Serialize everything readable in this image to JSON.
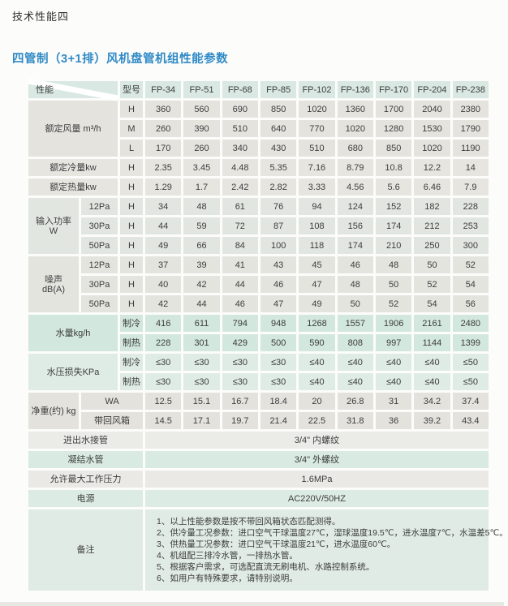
{
  "page": {
    "title": "技术性能四",
    "subtitle": "四管制（3+1排）风机盘管机组性能参数",
    "accent_color": "#2f8ac6",
    "green_row_color": "#d2e7dd",
    "gray_row_color": "#e5e3de"
  },
  "table": {
    "corner_left": "性能",
    "corner_right": "型号",
    "models": [
      "FP-34",
      "FP-51",
      "FP-68",
      "FP-85",
      "FP-102",
      "FP-136",
      "FP-170",
      "FP-204",
      "FP-238"
    ],
    "airflow": {
      "label": "额定风量 m³/h",
      "rows": [
        {
          "tap": "H",
          "v": [
            "360",
            "560",
            "690",
            "850",
            "1020",
            "1360",
            "1700",
            "2040",
            "2380"
          ]
        },
        {
          "tap": "M",
          "v": [
            "260",
            "390",
            "510",
            "640",
            "770",
            "1020",
            "1280",
            "1530",
            "1790"
          ]
        },
        {
          "tap": "L",
          "v": [
            "170",
            "260",
            "340",
            "430",
            "510",
            "680",
            "850",
            "1020",
            "1190"
          ]
        }
      ]
    },
    "cooling": {
      "label": "额定冷量kw",
      "tap": "H",
      "v": [
        "2.35",
        "3.45",
        "4.48",
        "5.35",
        "7.16",
        "8.79",
        "10.8",
        "12.2",
        "14"
      ]
    },
    "heating": {
      "label": "额定热量kw",
      "tap": "H",
      "v": [
        "1.29",
        "1.7",
        "2.42",
        "2.82",
        "3.33",
        "4.56",
        "5.6",
        "6.46",
        "7.9"
      ]
    },
    "power": {
      "label": "输入功率\nW",
      "rows": [
        {
          "pa": "12Pa",
          "tap": "H",
          "v": [
            "34",
            "48",
            "61",
            "76",
            "94",
            "124",
            "152",
            "182",
            "228"
          ]
        },
        {
          "pa": "30Pa",
          "tap": "H",
          "v": [
            "44",
            "59",
            "72",
            "87",
            "108",
            "156",
            "174",
            "212",
            "253"
          ]
        },
        {
          "pa": "50Pa",
          "tap": "H",
          "v": [
            "49",
            "66",
            "84",
            "100",
            "118",
            "174",
            "210",
            "250",
            "300"
          ]
        }
      ]
    },
    "noise": {
      "label": "噪声\ndB(A)",
      "rows": [
        {
          "pa": "12Pa",
          "tap": "H",
          "v": [
            "37",
            "39",
            "41",
            "43",
            "45",
            "46",
            "48",
            "50",
            "52"
          ]
        },
        {
          "pa": "30Pa",
          "tap": "H",
          "v": [
            "40",
            "42",
            "44",
            "46",
            "47",
            "48",
            "50",
            "52",
            "54"
          ]
        },
        {
          "pa": "50Pa",
          "tap": "H",
          "v": [
            "42",
            "44",
            "46",
            "47",
            "49",
            "50",
            "52",
            "54",
            "56"
          ]
        }
      ]
    },
    "waterflow": {
      "label": "水量kg/h",
      "rows": [
        {
          "mode": "制冷",
          "v": [
            "416",
            "611",
            "794",
            "948",
            "1268",
            "1557",
            "1906",
            "2161",
            "2480"
          ]
        },
        {
          "mode": "制热",
          "v": [
            "228",
            "301",
            "429",
            "500",
            "590",
            "808",
            "997",
            "1144",
            "1399"
          ]
        }
      ]
    },
    "pressure_loss": {
      "label": "水压损失KPa",
      "rows": [
        {
          "mode": "制冷",
          "v": [
            "≤30",
            "≤30",
            "≤30",
            "≤30",
            "≤40",
            "≤40",
            "≤40",
            "≤40",
            "≤50"
          ]
        },
        {
          "mode": "制热",
          "v": [
            "≤30",
            "≤30",
            "≤30",
            "≤30",
            "≤40",
            "≤40",
            "≤40",
            "≤40",
            "≤50"
          ]
        }
      ]
    },
    "weight": {
      "label": "净重(约) kg",
      "rows": [
        {
          "variant": "WA",
          "v": [
            "12.5",
            "15.1",
            "16.7",
            "18.4",
            "20",
            "26.8",
            "31",
            "34.2",
            "37.4"
          ]
        },
        {
          "variant": "带回风箱",
          "v": [
            "14.5",
            "17.1",
            "19.7",
            "21.4",
            "22.5",
            "31.8",
            "36",
            "39.2",
            "43.4"
          ]
        }
      ]
    },
    "full_rows": [
      {
        "label": "进出水接管",
        "value": "3/4\" 内螺纹"
      },
      {
        "label": "凝结水管",
        "value": "3/4\" 外螺纹"
      },
      {
        "label": "允许最大工作压力",
        "value": "1.6MPa"
      },
      {
        "label": "电源",
        "value": "AC220V/50HZ"
      }
    ],
    "remarks": {
      "label": "备注",
      "notes": [
        "1、以上性能参数是按不带回风箱状态匹配测得。",
        "2、供冷量工况参数：进口空气干球温度27℃，湿球温度19.5℃，进水温度7℃，水温差5℃。",
        "3、供热量工况参数：进口空气干球温度21℃，进水温度60℃。",
        "4、机组配三排冷水管，一排热水管。",
        "5、根据客户需求，可选配直流无刷电机、水路控制系统。",
        "6、如用户有特殊要求，请特别说明。"
      ]
    }
  }
}
